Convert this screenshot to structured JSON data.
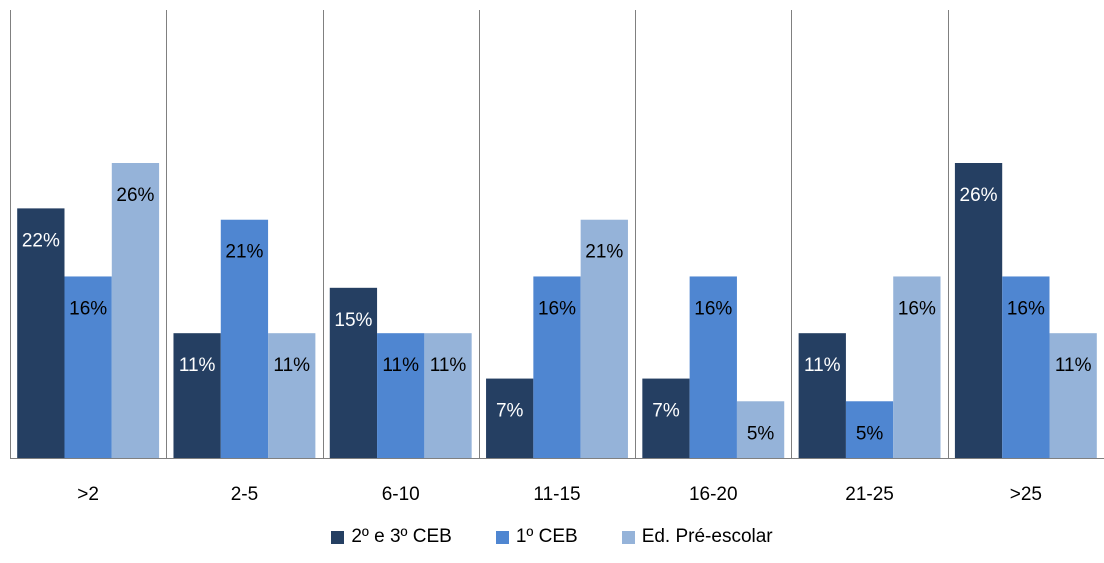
{
  "chart_data": {
    "type": "bar",
    "categories": [
      ">2",
      "2-5",
      "6-10",
      "11-15",
      "16-20",
      "21-25",
      ">25"
    ],
    "series": [
      {
        "name": "2º e 3º CEB",
        "color": "#253f62",
        "values": [
          22,
          11,
          15,
          7,
          7,
          11,
          26
        ],
        "labels": [
          "22%",
          "11%",
          "15%",
          "7%",
          "7%",
          "11%",
          "26%"
        ]
      },
      {
        "name": "1º CEB",
        "color": "#4f86d1",
        "values": [
          16,
          21,
          11,
          16,
          16,
          5,
          16
        ],
        "labels": [
          "16%",
          "21%",
          "11%",
          "16%",
          "16%",
          "5%",
          "16%"
        ]
      },
      {
        "name": "Ed. Pré-escolar",
        "color": "#95b3d9",
        "values": [
          26,
          11,
          11,
          21,
          5,
          16,
          11
        ],
        "labels": [
          "26%",
          "11%",
          "11%",
          "21%",
          "5%",
          "16%",
          "11%"
        ]
      }
    ],
    "value_format": "percent",
    "grid": "vertical separators",
    "legend_position": "bottom"
  }
}
